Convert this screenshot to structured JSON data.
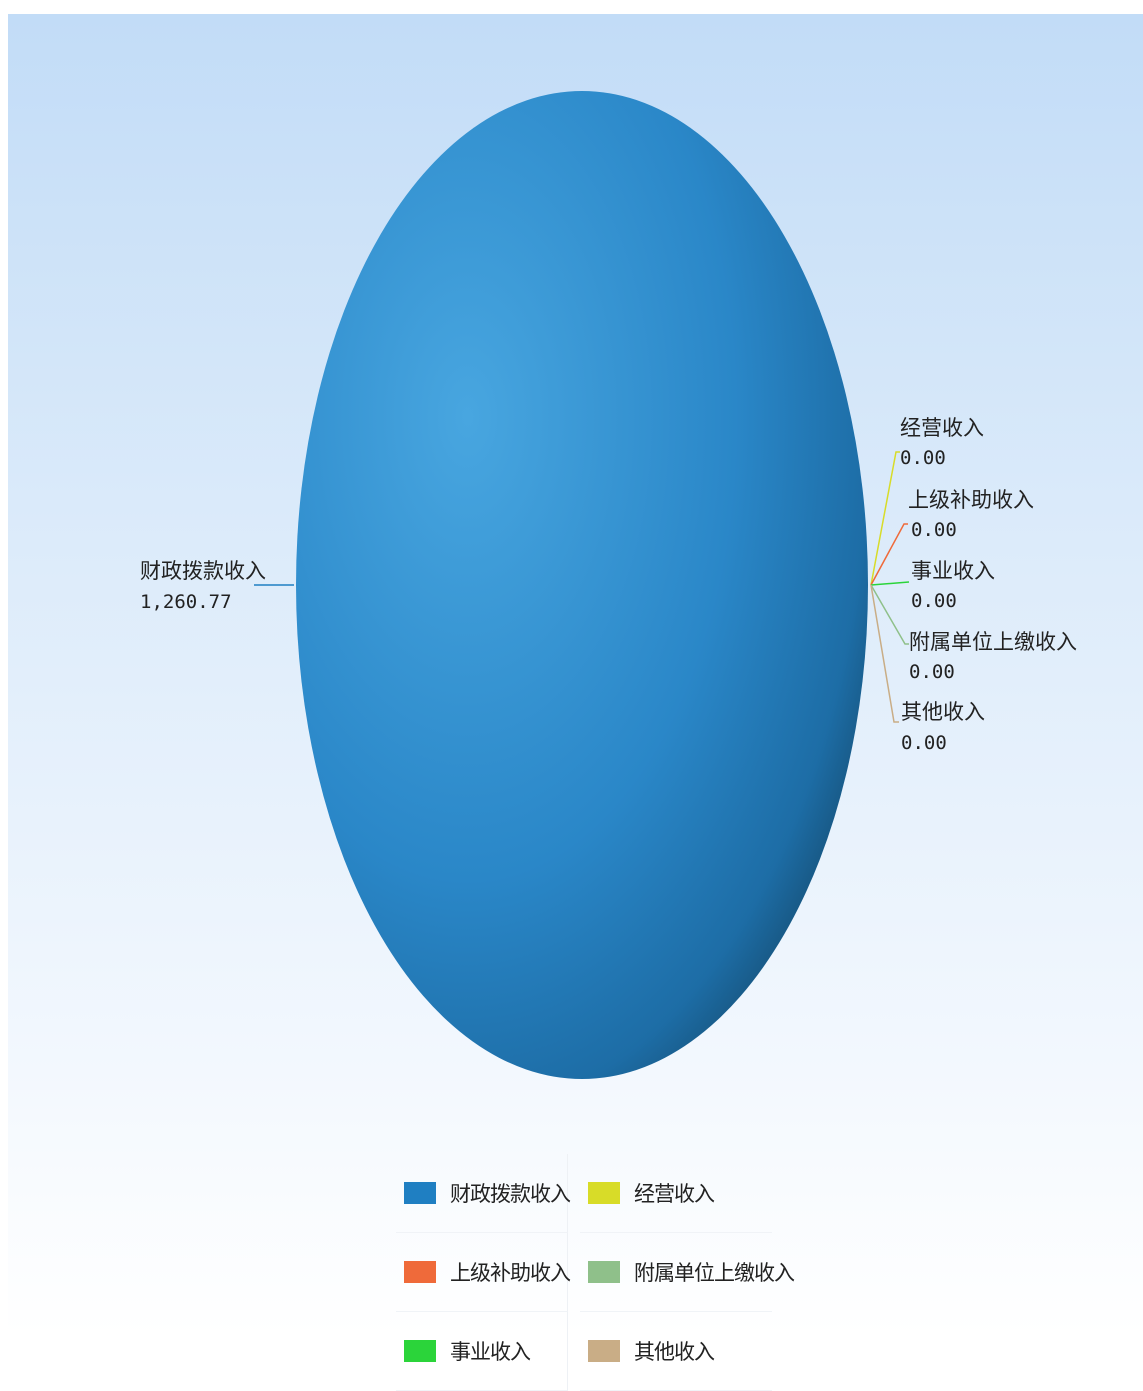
{
  "chart_data": {
    "type": "pie",
    "title": "",
    "categories": [
      "财政拨款收入",
      "经营收入",
      "上级补助收入",
      "事业收入",
      "附属单位上缴收入",
      "其他收入"
    ],
    "values": [
      1260.77,
      0.0,
      0.0,
      0.0,
      0.0,
      0.0
    ],
    "value_labels": [
      "1,260.77",
      "0.00",
      "0.00",
      "0.00",
      "0.00",
      "0.00"
    ],
    "colors": [
      "#1f7fc2",
      "#d8dc28",
      "#ef6a3a",
      "#2bd43a",
      "#8fc08a",
      "#c9ad86"
    ],
    "legend": {
      "position": "bottom",
      "items": [
        {
          "label": "财政拨款收入",
          "color": "#1f7fc2"
        },
        {
          "label": "经营收入",
          "color": "#d8dc28"
        },
        {
          "label": "上级补助收入",
          "color": "#ef6a3a"
        },
        {
          "label": "附属单位上缴收入",
          "color": "#8fc08a"
        },
        {
          "label": "事业收入",
          "color": "#2bd43a"
        },
        {
          "label": "其他收入",
          "color": "#c9ad86"
        }
      ]
    }
  }
}
